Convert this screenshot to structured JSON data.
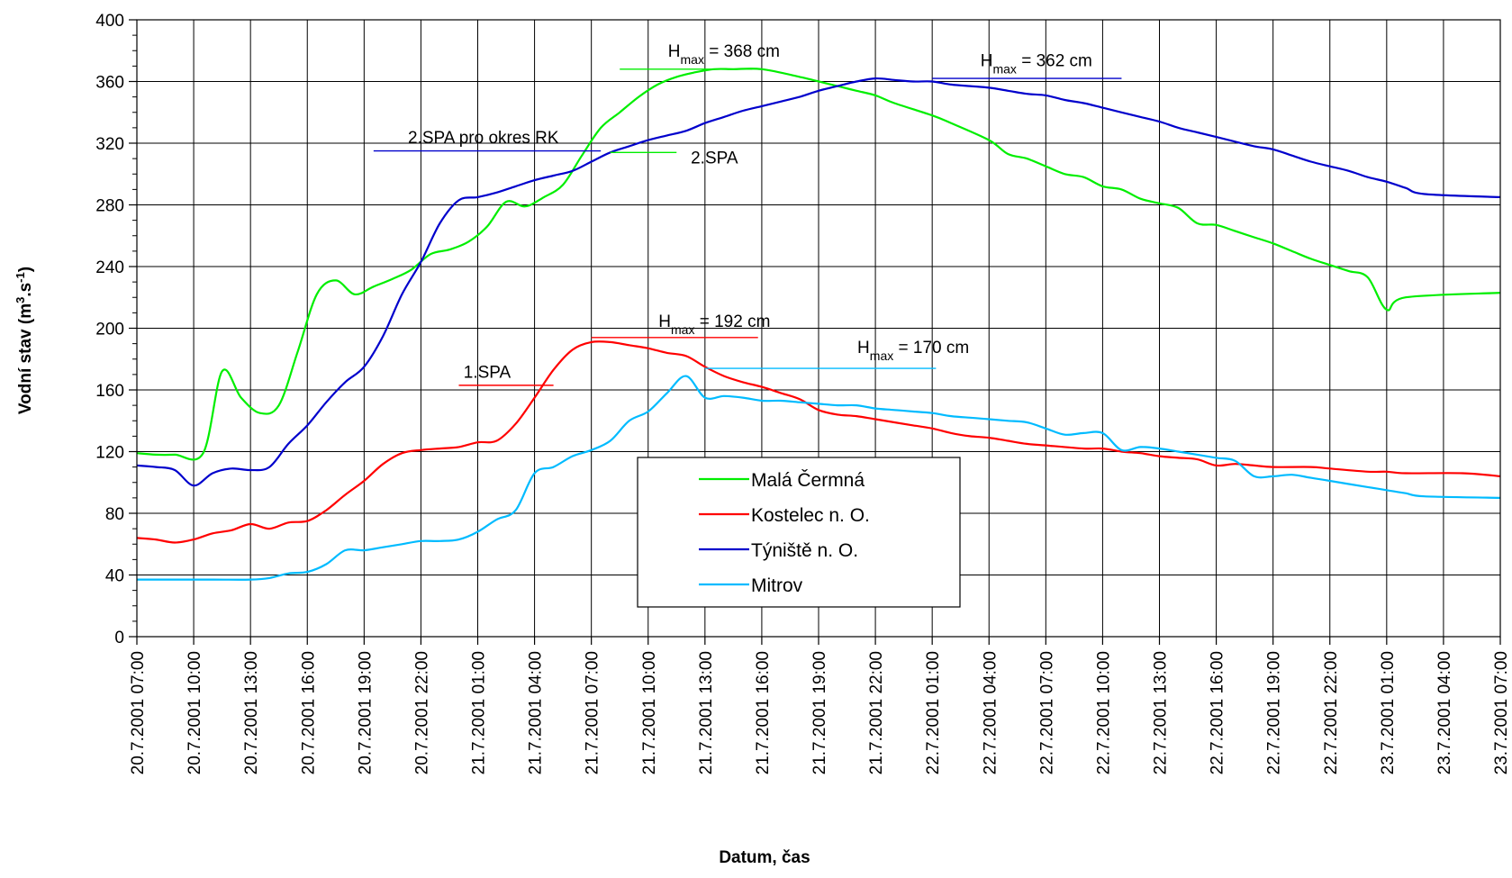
{
  "chart_data": {
    "type": "line",
    "xlabel": "Datum, čas",
    "ylabel": "Vodní stav (m",
    "ylabel_sup1": "3",
    "ylabel_mid": ".s",
    "ylabel_sup2": "-1",
    "ylabel_end": ")",
    "ylim": [
      0,
      400
    ],
    "yticks": [
      0,
      40,
      80,
      120,
      160,
      200,
      240,
      280,
      320,
      360,
      400
    ],
    "x_range_hours": [
      0,
      72
    ],
    "x_tick_step_hours": 3,
    "x_ticks": [
      "20.7.2001 07:00",
      "20.7.2001 10:00",
      "20.7.2001 13:00",
      "20.7.2001 16:00",
      "20.7.2001 19:00",
      "20.7.2001 22:00",
      "21.7.2001 01:00",
      "21.7.2001 04:00",
      "21.7.2001 07:00",
      "21.7.2001 10:00",
      "21.7.2001 13:00",
      "21.7.2001 16:00",
      "21.7.2001 19:00",
      "21.7.2001 22:00",
      "22.7.2001 01:00",
      "22.7.2001 04:00",
      "22.7.2001 07:00",
      "22.7.2001 10:00",
      "22.7.2001 13:00",
      "22.7.2001 16:00",
      "22.7.2001 19:00",
      "22.7.2001 22:00",
      "23.7.2001 01:00",
      "23.7.2001 04:00",
      "23.7.2001 07:00"
    ],
    "grid": true,
    "legend_position": "center-bottom",
    "series": [
      {
        "name": "Malá Čermná",
        "color": "#00ee00",
        "points": [
          [
            0,
            119
          ],
          [
            1,
            118
          ],
          [
            2,
            118
          ],
          [
            3.5,
            119
          ],
          [
            4.5,
            172
          ],
          [
            5.5,
            155
          ],
          [
            6.5,
            145
          ],
          [
            7.5,
            150
          ],
          [
            8.5,
            185
          ],
          [
            9.5,
            222
          ],
          [
            10.5,
            231
          ],
          [
            11.5,
            222
          ],
          [
            12.5,
            227
          ],
          [
            13.5,
            232
          ],
          [
            14.5,
            238
          ],
          [
            15.5,
            248
          ],
          [
            16.5,
            251
          ],
          [
            17.5,
            256
          ],
          [
            18.5,
            266
          ],
          [
            19.5,
            282
          ],
          [
            20.5,
            279
          ],
          [
            21.5,
            285
          ],
          [
            22.5,
            293
          ],
          [
            23.5,
            312
          ],
          [
            24.5,
            330
          ],
          [
            25.5,
            340
          ],
          [
            26.5,
            350
          ],
          [
            27.5,
            358
          ],
          [
            28.5,
            363
          ],
          [
            29.5,
            366
          ],
          [
            30.5,
            368
          ],
          [
            31.5,
            368
          ],
          [
            33,
            368
          ],
          [
            35,
            363
          ],
          [
            37,
            357
          ],
          [
            38,
            354
          ],
          [
            39,
            351
          ],
          [
            40,
            346
          ],
          [
            42,
            338
          ],
          [
            43,
            333
          ],
          [
            45,
            322
          ],
          [
            46,
            313
          ],
          [
            47,
            310
          ],
          [
            48,
            305
          ],
          [
            49,
            300
          ],
          [
            50,
            298
          ],
          [
            51,
            292
          ],
          [
            52,
            290
          ],
          [
            53,
            284
          ],
          [
            54,
            281
          ],
          [
            55,
            278
          ],
          [
            56,
            268
          ],
          [
            57,
            267
          ],
          [
            58,
            263
          ],
          [
            59,
            259
          ],
          [
            60,
            255
          ],
          [
            61,
            250
          ],
          [
            62,
            245
          ],
          [
            63,
            241
          ],
          [
            64,
            237
          ],
          [
            65,
            233
          ],
          [
            66,
            212
          ],
          [
            67,
            220
          ],
          [
            72,
            223
          ]
        ]
      },
      {
        "name": "Kostelec n. O.",
        "color": "#ff0000",
        "points": [
          [
            0,
            64
          ],
          [
            1,
            63
          ],
          [
            2,
            61
          ],
          [
            3,
            63
          ],
          [
            4,
            67
          ],
          [
            5,
            69
          ],
          [
            6,
            73
          ],
          [
            7,
            70
          ],
          [
            8,
            74
          ],
          [
            9,
            75
          ],
          [
            10,
            82
          ],
          [
            11,
            92
          ],
          [
            12,
            101
          ],
          [
            13,
            112
          ],
          [
            14,
            119
          ],
          [
            15,
            121
          ],
          [
            16,
            122
          ],
          [
            17,
            123
          ],
          [
            18,
            126
          ],
          [
            19,
            127
          ],
          [
            20,
            138
          ],
          [
            21,
            155
          ],
          [
            22,
            173
          ],
          [
            23,
            186
          ],
          [
            24,
            191
          ],
          [
            25,
            191
          ],
          [
            26,
            189
          ],
          [
            27,
            187
          ],
          [
            28,
            184
          ],
          [
            29,
            182
          ],
          [
            30,
            175
          ],
          [
            31,
            169
          ],
          [
            32,
            165
          ],
          [
            33,
            162
          ],
          [
            34,
            158
          ],
          [
            35,
            154
          ],
          [
            36,
            147
          ],
          [
            37,
            144
          ],
          [
            38,
            143
          ],
          [
            39,
            141
          ],
          [
            40,
            139
          ],
          [
            41,
            137
          ],
          [
            42,
            135
          ],
          [
            43,
            132
          ],
          [
            44,
            130
          ],
          [
            45,
            129
          ],
          [
            46,
            127
          ],
          [
            47,
            125
          ],
          [
            48,
            124
          ],
          [
            50,
            122
          ],
          [
            51,
            122
          ],
          [
            52,
            120
          ],
          [
            53,
            119
          ],
          [
            54,
            117
          ],
          [
            55,
            116
          ],
          [
            56,
            115
          ],
          [
            57,
            111
          ],
          [
            58,
            112
          ],
          [
            59,
            111
          ],
          [
            60,
            110
          ],
          [
            62,
            110
          ],
          [
            63,
            109
          ],
          [
            65,
            107
          ],
          [
            66,
            107
          ],
          [
            67,
            106
          ],
          [
            70,
            106
          ],
          [
            72,
            104
          ]
        ]
      },
      {
        "name": "Týniště n. O.",
        "color": "#0000cc",
        "points": [
          [
            0,
            111
          ],
          [
            1,
            110
          ],
          [
            2,
            108
          ],
          [
            3,
            98
          ],
          [
            4,
            106
          ],
          [
            5,
            109
          ],
          [
            6,
            108
          ],
          [
            7,
            110
          ],
          [
            8,
            125
          ],
          [
            9,
            137
          ],
          [
            10,
            152
          ],
          [
            11,
            165
          ],
          [
            12,
            175
          ],
          [
            13,
            195
          ],
          [
            14,
            222
          ],
          [
            15,
            243
          ],
          [
            16,
            268
          ],
          [
            17,
            283
          ],
          [
            18,
            285
          ],
          [
            19,
            288
          ],
          [
            20,
            292
          ],
          [
            21,
            296
          ],
          [
            22,
            299
          ],
          [
            23,
            302
          ],
          [
            24,
            308
          ],
          [
            25,
            314
          ],
          [
            26,
            318
          ],
          [
            27,
            322
          ],
          [
            28,
            325
          ],
          [
            29,
            328
          ],
          [
            30,
            333
          ],
          [
            31,
            337
          ],
          [
            32,
            341
          ],
          [
            33,
            344
          ],
          [
            34,
            347
          ],
          [
            35,
            350
          ],
          [
            36,
            354
          ],
          [
            37,
            357
          ],
          [
            38,
            360
          ],
          [
            39,
            362
          ],
          [
            40,
            361
          ],
          [
            41,
            360
          ],
          [
            42,
            360
          ],
          [
            43,
            358
          ],
          [
            44,
            357
          ],
          [
            45,
            356
          ],
          [
            46,
            354
          ],
          [
            47,
            352
          ],
          [
            48,
            351
          ],
          [
            49,
            348
          ],
          [
            50,
            346
          ],
          [
            51,
            343
          ],
          [
            52,
            340
          ],
          [
            53,
            337
          ],
          [
            54,
            334
          ],
          [
            55,
            330
          ],
          [
            56,
            327
          ],
          [
            57,
            324
          ],
          [
            58,
            321
          ],
          [
            59,
            318
          ],
          [
            60,
            316
          ],
          [
            61,
            312
          ],
          [
            62,
            308
          ],
          [
            63,
            305
          ],
          [
            64,
            302
          ],
          [
            65,
            298
          ],
          [
            66,
            295
          ],
          [
            67,
            291
          ],
          [
            68,
            287
          ],
          [
            72,
            285
          ]
        ]
      },
      {
        "name": "Mitrov",
        "color": "#00bbff",
        "points": [
          [
            0,
            37
          ],
          [
            2,
            37
          ],
          [
            4,
            37
          ],
          [
            6,
            37
          ],
          [
            7,
            38
          ],
          [
            8,
            41
          ],
          [
            9,
            42
          ],
          [
            10,
            47
          ],
          [
            11,
            56
          ],
          [
            12,
            56
          ],
          [
            13,
            58
          ],
          [
            14,
            60
          ],
          [
            15,
            62
          ],
          [
            16,
            62
          ],
          [
            17,
            63
          ],
          [
            18,
            68
          ],
          [
            19,
            76
          ],
          [
            20,
            82
          ],
          [
            21,
            106
          ],
          [
            22,
            110
          ],
          [
            23,
            117
          ],
          [
            24,
            121
          ],
          [
            25,
            127
          ],
          [
            26,
            140
          ],
          [
            27,
            146
          ],
          [
            28,
            158
          ],
          [
            29,
            169
          ],
          [
            30,
            155
          ],
          [
            31,
            156
          ],
          [
            32,
            155
          ],
          [
            33,
            153
          ],
          [
            34,
            153
          ],
          [
            35,
            152
          ],
          [
            36,
            151
          ],
          [
            37,
            150
          ],
          [
            38,
            150
          ],
          [
            39,
            148
          ],
          [
            40,
            147
          ],
          [
            41,
            146
          ],
          [
            42,
            145
          ],
          [
            43,
            143
          ],
          [
            44,
            142
          ],
          [
            45,
            141
          ],
          [
            46,
            140
          ],
          [
            47,
            139
          ],
          [
            48,
            135
          ],
          [
            49,
            131
          ],
          [
            50,
            132
          ],
          [
            51,
            132
          ],
          [
            52,
            121
          ],
          [
            53,
            123
          ],
          [
            54,
            122
          ],
          [
            55,
            120
          ],
          [
            56,
            118
          ],
          [
            57,
            116
          ],
          [
            58,
            114
          ],
          [
            59,
            104
          ],
          [
            60,
            104
          ],
          [
            61,
            105
          ],
          [
            62,
            103
          ],
          [
            63,
            101
          ],
          [
            64,
            99
          ],
          [
            65,
            97
          ],
          [
            66,
            95
          ],
          [
            67,
            93
          ],
          [
            68,
            91
          ],
          [
            72,
            90
          ]
        ]
      }
    ],
    "annotations": [
      {
        "name": "hmax-368",
        "text_pre": "H",
        "sub": "max",
        "text_post": " = 368 cm",
        "text_x": 31.0,
        "text_y": 376,
        "line_x1": 25.5,
        "line_x2": 32.5,
        "line_y": 368,
        "color": "#00ee00"
      },
      {
        "name": "hmax-362",
        "text_pre": "H",
        "sub": "max",
        "text_post": " = 362 cm",
        "text_x": 47.5,
        "text_y": 370,
        "line_x1": 42,
        "line_x2": 52,
        "line_y": 362,
        "color": "#0000cc"
      },
      {
        "name": "spa2-rk",
        "text": "2.SPA  pro okres RK",
        "text_x": 18.3,
        "text_y": 320,
        "line_x1": 12.5,
        "line_x2": 24.5,
        "line_y": 315,
        "color": "#0000cc"
      },
      {
        "name": "spa2",
        "text": "2.SPA",
        "text_x": 30.5,
        "text_y": 307,
        "line_x1": 25,
        "line_x2": 28.5,
        "line_y": 314,
        "color": "#00ee00"
      },
      {
        "name": "hmax-192",
        "text_pre": "H",
        "sub": "max",
        "text_post": " = 192 cm",
        "text_x": 30.5,
        "text_y": 201,
        "line_x1": 24,
        "line_x2": 32.8,
        "line_y": 194,
        "color": "#ff0000"
      },
      {
        "name": "hmax-170",
        "text_pre": "H",
        "sub": "max",
        "text_post": " = 170 cm",
        "text_x": 41.0,
        "text_y": 184,
        "line_x1": 30,
        "line_x2": 42.2,
        "line_y": 174,
        "color": "#00bbff"
      },
      {
        "name": "spa1",
        "text": "1.SPA",
        "text_x": 18.5,
        "text_y": 168,
        "line_x1": 17,
        "line_x2": 22,
        "line_y": 163,
        "color": "#ff0000"
      }
    ]
  }
}
